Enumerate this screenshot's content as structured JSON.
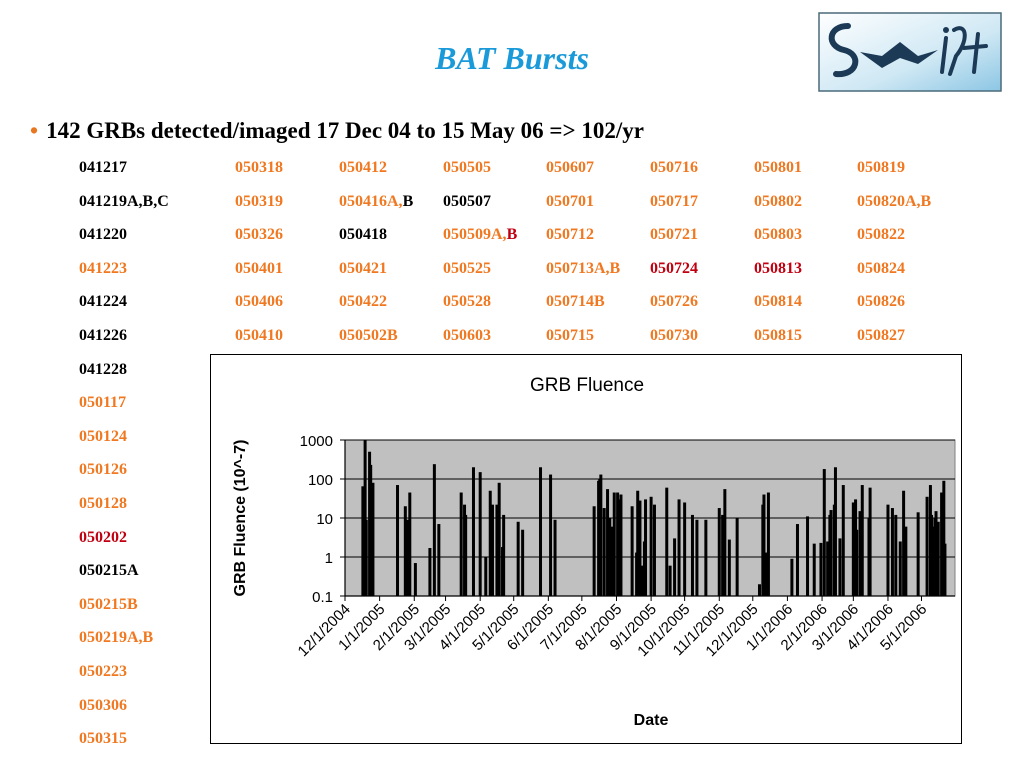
{
  "slide": {
    "title": "BAT Bursts",
    "bullet": "142 GRBs detected/imaged 17 Dec 04 to 15 May 06  =>  102/yr",
    "logo_text": "Swift"
  },
  "colors": {
    "title": "#1a9ad8",
    "black": "#000000",
    "orange": "#f07820",
    "red": "#c00010",
    "plot_bg": "#c0c0c0"
  },
  "grb_table": {
    "columns": [
      [
        {
          "t": "041217",
          "c": "k"
        },
        {
          "t": "041219A,B,C",
          "c": "k"
        },
        {
          "t": "041220",
          "c": "k"
        },
        {
          "t": "041223",
          "c": "o"
        },
        {
          "t": "041224",
          "c": "k"
        },
        {
          "t": "041226",
          "c": "k"
        },
        {
          "t": "041228",
          "c": "k"
        },
        {
          "t": "050117",
          "c": "o"
        },
        {
          "t": "050124",
          "c": "o"
        },
        {
          "t": "050126",
          "c": "o"
        },
        {
          "t": "050128",
          "c": "o"
        },
        {
          "t": "050202",
          "c": "r"
        },
        {
          "t": "050215A",
          "c": "k"
        },
        {
          "t": "050215B",
          "c": "o"
        },
        {
          "t": "050219A,B",
          "c": "o"
        },
        {
          "t": "050223",
          "c": "o"
        },
        {
          "t": "050306",
          "c": "o"
        },
        {
          "t": "050315",
          "c": "o"
        }
      ],
      [
        {
          "t": "050318",
          "c": "o"
        },
        {
          "t": "050319",
          "c": "o"
        },
        {
          "t": "050326",
          "c": "o"
        },
        {
          "t": "050401",
          "c": "o"
        },
        {
          "t": "050406",
          "c": "o"
        },
        {
          "t": "050410",
          "c": "o"
        }
      ],
      [
        {
          "t": "050412",
          "c": "o"
        },
        {
          "t": "050416A,",
          "c": "o",
          "t2": "B",
          "c2": "k"
        },
        {
          "t": "050418",
          "c": "k"
        },
        {
          "t": "050421",
          "c": "o"
        },
        {
          "t": "050422",
          "c": "o"
        },
        {
          "t": "050502B",
          "c": "o"
        }
      ],
      [
        {
          "t": "050505",
          "c": "o"
        },
        {
          "t": "050507",
          "c": "k"
        },
        {
          "t": "050509A,",
          "c": "o",
          "t2": "B",
          "c2": "r"
        },
        {
          "t": "050525",
          "c": "o"
        },
        {
          "t": "050528",
          "c": "o"
        },
        {
          "t": "050603",
          "c": "o"
        }
      ],
      [
        {
          "t": "050607",
          "c": "o"
        },
        {
          "t": "050701",
          "c": "o"
        },
        {
          "t": "050712",
          "c": "o"
        },
        {
          "t": "050713A,B",
          "c": "o"
        },
        {
          "t": "050714B",
          "c": "o"
        },
        {
          "t": "050715",
          "c": "o"
        }
      ],
      [
        {
          "t": "050716",
          "c": "o"
        },
        {
          "t": "050717",
          "c": "o"
        },
        {
          "t": "050721",
          "c": "o"
        },
        {
          "t": "050724",
          "c": "r"
        },
        {
          "t": "050726",
          "c": "o"
        },
        {
          "t": "050730",
          "c": "o"
        }
      ],
      [
        {
          "t": "050801",
          "c": "o"
        },
        {
          "t": "050802",
          "c": "o"
        },
        {
          "t": "050803",
          "c": "o"
        },
        {
          "t": "050813",
          "c": "r"
        },
        {
          "t": "050814",
          "c": "o"
        },
        {
          "t": "050815",
          "c": "o"
        }
      ],
      [
        {
          "t": "050819",
          "c": "o"
        },
        {
          "t": "050820A,B",
          "c": "o"
        },
        {
          "t": "050822",
          "c": "o"
        },
        {
          "t": "050824",
          "c": "o"
        },
        {
          "t": "050826",
          "c": "o"
        },
        {
          "t": "050827",
          "c": "o"
        }
      ]
    ]
  },
  "chart_data": {
    "type": "bar",
    "title": "GRB Fluence",
    "xlabel": "Date",
    "ylabel": "GRB Fluence (10^-7)",
    "yscale": "log",
    "ylim": [
      0.1,
      1000
    ],
    "yticks": [
      "1000",
      "100",
      "10",
      "1",
      "0.1"
    ],
    "xlim": [
      "12/1/2004",
      "5/31/2006"
    ],
    "xticks": [
      "12/1/2004",
      "1/1/2005",
      "2/1/2005",
      "3/1/2005",
      "4/1/2005",
      "5/1/2005",
      "6/1/2005",
      "7/1/2005",
      "8/1/2005",
      "9/1/2005",
      "10/1/2005",
      "11/1/2005",
      "12/1/2005",
      "1/1/2006",
      "2/1/2006",
      "3/1/2006",
      "4/1/2006",
      "5/1/2006"
    ],
    "grid": "horizontal",
    "legend": "none",
    "points": [
      {
        "x": "12/17/2004",
        "y": 65
      },
      {
        "x": "12/19/2004",
        "y": 1000
      },
      {
        "x": "12/20/2004",
        "y": 9
      },
      {
        "x": "12/23/2004",
        "y": 500
      },
      {
        "x": "12/24/2004",
        "y": 230
      },
      {
        "x": "12/26/2004",
        "y": 80
      },
      {
        "x": "1/17/2005",
        "y": 70
      },
      {
        "x": "1/24/2005",
        "y": 20
      },
      {
        "x": "1/26/2005",
        "y": 9
      },
      {
        "x": "1/28/2005",
        "y": 45
      },
      {
        "x": "2/2/2005",
        "y": 0.7
      },
      {
        "x": "2/15/2005",
        "y": 1.7
      },
      {
        "x": "2/19/2005",
        "y": 240
      },
      {
        "x": "2/23/2005",
        "y": 7
      },
      {
        "x": "3/6/2005",
        "y": 0.1
      },
      {
        "x": "3/15/2005",
        "y": 45
      },
      {
        "x": "3/18/2005",
        "y": 22
      },
      {
        "x": "3/19/2005",
        "y": 12
      },
      {
        "x": "3/26/2005",
        "y": 200
      },
      {
        "x": "4/1/2005",
        "y": 150
      },
      {
        "x": "4/6/2005",
        "y": 1
      },
      {
        "x": "4/10/2005",
        "y": 50
      },
      {
        "x": "4/12/2005",
        "y": 22
      },
      {
        "x": "4/16/2005",
        "y": 22
      },
      {
        "x": "4/18/2005",
        "y": 80
      },
      {
        "x": "4/21/2005",
        "y": 1.8
      },
      {
        "x": "4/22/2005",
        "y": 12
      },
      {
        "x": "5/2/2005",
        "y": 0.1
      },
      {
        "x": "5/5/2005",
        "y": 8
      },
      {
        "x": "5/7/2005",
        "y": 0.1
      },
      {
        "x": "5/9/2005",
        "y": 5
      },
      {
        "x": "5/25/2005",
        "y": 200
      },
      {
        "x": "5/28/2005",
        "y": 0.1
      },
      {
        "x": "6/3/2005",
        "y": 130
      },
      {
        "x": "6/7/2005",
        "y": 9
      },
      {
        "x": "7/1/2005",
        "y": 0.1
      },
      {
        "x": "7/12/2005",
        "y": 20
      },
      {
        "x": "7/13/2005",
        "y": 0.1
      },
      {
        "x": "7/14/2005",
        "y": 0.1
      },
      {
        "x": "7/15/2005",
        "y": 0.1
      },
      {
        "x": "7/16/2005",
        "y": 90
      },
      {
        "x": "7/17/2005",
        "y": 100
      },
      {
        "x": "7/18/2005",
        "y": 130
      },
      {
        "x": "7/21/2005",
        "y": 18
      },
      {
        "x": "7/24/2005",
        "y": 55
      },
      {
        "x": "7/26/2005",
        "y": 10
      },
      {
        "x": "7/28/2005",
        "y": 6
      },
      {
        "x": "7/30/2005",
        "y": 45
      },
      {
        "x": "8/1/2005",
        "y": 0.1
      },
      {
        "x": "8/2/2005",
        "y": 45
      },
      {
        "x": "8/3/2005",
        "y": 30
      },
      {
        "x": "8/5/2005",
        "y": 40
      },
      {
        "x": "8/13/2005",
        "y": 0.1
      },
      {
        "x": "8/14/2005",
        "y": 0.1
      },
      {
        "x": "8/15/2005",
        "y": 20
      },
      {
        "x": "8/19/2005",
        "y": 1.3
      },
      {
        "x": "8/20/2005",
        "y": 50
      },
      {
        "x": "8/22/2005",
        "y": 28
      },
      {
        "x": "8/24/2005",
        "y": 0.6
      },
      {
        "x": "8/26/2005",
        "y": 2.5
      },
      {
        "x": "8/27/2005",
        "y": 30
      },
      {
        "x": "9/1/2005",
        "y": 35
      },
      {
        "x": "9/4/2005",
        "y": 22
      },
      {
        "x": "9/6/2005",
        "y": 0.1
      },
      {
        "x": "9/10/2005",
        "y": 0.1
      },
      {
        "x": "9/15/2005",
        "y": 60
      },
      {
        "x": "9/18/2005",
        "y": 0.6
      },
      {
        "x": "9/22/2005",
        "y": 3
      },
      {
        "x": "9/26/2005",
        "y": 30
      },
      {
        "x": "10/1/2005",
        "y": 25
      },
      {
        "x": "10/4/2005",
        "y": 0.1
      },
      {
        "x": "10/8/2005",
        "y": 12
      },
      {
        "x": "10/12/2005",
        "y": 9
      },
      {
        "x": "10/16/2005",
        "y": 0.1
      },
      {
        "x": "10/20/2005",
        "y": 9
      },
      {
        "x": "11/1/2005",
        "y": 18
      },
      {
        "x": "11/4/2005",
        "y": 12
      },
      {
        "x": "11/6/2005",
        "y": 55
      },
      {
        "x": "11/10/2005",
        "y": 2.8
      },
      {
        "x": "11/14/2005",
        "y": 0.1
      },
      {
        "x": "11/17/2005",
        "y": 10
      },
      {
        "x": "11/22/2005",
        "y": 0.1
      },
      {
        "x": "12/7/2005",
        "y": 0.2
      },
      {
        "x": "12/10/2005",
        "y": 22
      },
      {
        "x": "12/11/2005",
        "y": 40
      },
      {
        "x": "12/13/2005",
        "y": 1.3
      },
      {
        "x": "12/15/2005",
        "y": 45
      },
      {
        "x": "12/24/2005",
        "y": 0.1
      },
      {
        "x": "1/5/2006",
        "y": 0.9
      },
      {
        "x": "1/10/2006",
        "y": 7
      },
      {
        "x": "1/19/2006",
        "y": 11
      },
      {
        "x": "1/22/2006",
        "y": 0.1
      },
      {
        "x": "1/25/2006",
        "y": 2.2
      },
      {
        "x": "1/31/2006",
        "y": 2.3
      },
      {
        "x": "2/3/2006",
        "y": 180
      },
      {
        "x": "2/6/2006",
        "y": 2.5
      },
      {
        "x": "2/8/2006",
        "y": 12
      },
      {
        "x": "2/9/2006",
        "y": 16
      },
      {
        "x": "2/12/2006",
        "y": 22
      },
      {
        "x": "2/13/2006",
        "y": 200
      },
      {
        "x": "2/17/2006",
        "y": 3
      },
      {
        "x": "2/20/2006",
        "y": 70
      },
      {
        "x": "2/26/2006",
        "y": 0.1
      },
      {
        "x": "3/1/2006",
        "y": 25
      },
      {
        "x": "3/3/2006",
        "y": 30
      },
      {
        "x": "3/4/2006",
        "y": 5
      },
      {
        "x": "3/7/2006",
        "y": 15
      },
      {
        "x": "3/9/2006",
        "y": 70
      },
      {
        "x": "3/15/2006",
        "y": 10
      },
      {
        "x": "3/16/2006",
        "y": 60
      },
      {
        "x": "3/21/2006",
        "y": 0.1
      },
      {
        "x": "3/26/2006",
        "y": 0.1
      },
      {
        "x": "4/1/2006",
        "y": 22
      },
      {
        "x": "4/5/2006",
        "y": 18
      },
      {
        "x": "4/8/2006",
        "y": 12
      },
      {
        "x": "4/12/2006",
        "y": 2.5
      },
      {
        "x": "4/15/2006",
        "y": 50
      },
      {
        "x": "4/17/2006",
        "y": 6
      },
      {
        "x": "4/28/2006",
        "y": 14
      },
      {
        "x": "5/6/2006",
        "y": 35
      },
      {
        "x": "5/9/2006",
        "y": 70
      },
      {
        "x": "5/10/2006",
        "y": 12
      },
      {
        "x": "5/12/2006",
        "y": 6
      },
      {
        "x": "5/13/2006",
        "y": 10
      },
      {
        "x": "5/14/2006",
        "y": 15
      },
      {
        "x": "5/16/2006",
        "y": 8
      },
      {
        "x": "5/19/2006",
        "y": 45
      },
      {
        "x": "5/21/2006",
        "y": 90
      },
      {
        "x": "5/22/2006",
        "y": 2.2
      }
    ]
  }
}
